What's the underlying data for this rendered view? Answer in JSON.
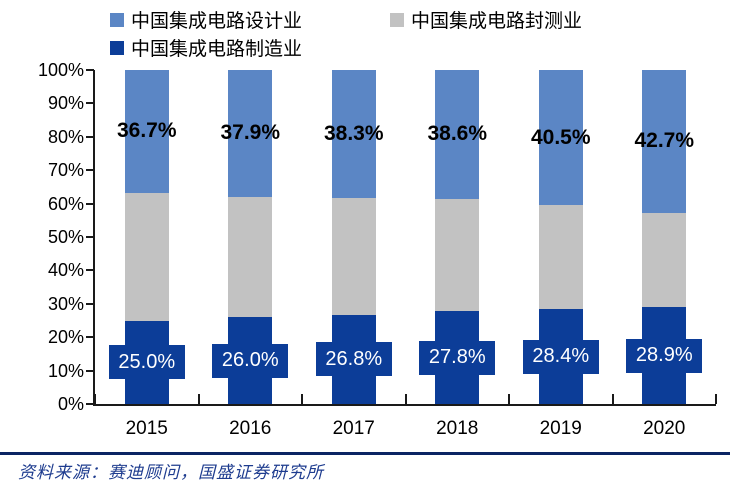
{
  "legend": {
    "items": [
      {
        "label": "中国集成电路设计业",
        "color": "#5B86C5"
      },
      {
        "label": "中国集成电路封测业",
        "color": "#C2C2C2"
      },
      {
        "label": "中国集成电路制造业",
        "color": "#0C3D98"
      }
    ]
  },
  "chart_data": {
    "type": "bar",
    "variant": "stacked-100-percent-column",
    "title": "",
    "xlabel": "",
    "ylabel": "",
    "categories": [
      "2015",
      "2016",
      "2017",
      "2018",
      "2019",
      "2020"
    ],
    "series": [
      {
        "name": "中国集成电路设计业",
        "color": "#5B86C5",
        "values": [
          36.7,
          37.9,
          38.3,
          38.6,
          40.5,
          42.7
        ],
        "data_labels": [
          "36.7%",
          "37.9%",
          "38.3%",
          "38.6%",
          "40.5%",
          "42.7%"
        ]
      },
      {
        "name": "中国集成电路封测业",
        "color": "#C2C2C2",
        "values": [
          38.3,
          36.1,
          34.9,
          33.6,
          31.1,
          28.4
        ],
        "data_labels": []
      },
      {
        "name": "中国集成电路制造业",
        "color": "#0C3D98",
        "values": [
          25.0,
          26.0,
          26.8,
          27.8,
          28.4,
          28.9
        ],
        "data_labels": [
          "25.0%",
          "26.0%",
          "26.8%",
          "27.8%",
          "28.4%",
          "28.9%"
        ]
      }
    ],
    "yticks": [
      "0%",
      "10%",
      "20%",
      "30%",
      "40%",
      "50%",
      "60%",
      "70%",
      "80%",
      "90%",
      "100%"
    ],
    "ylim": [
      0,
      100
    ],
    "grid": false,
    "legend_position": "top-left"
  },
  "source": {
    "text": "资料来源：赛迪顾问，国盛证券研究所"
  }
}
